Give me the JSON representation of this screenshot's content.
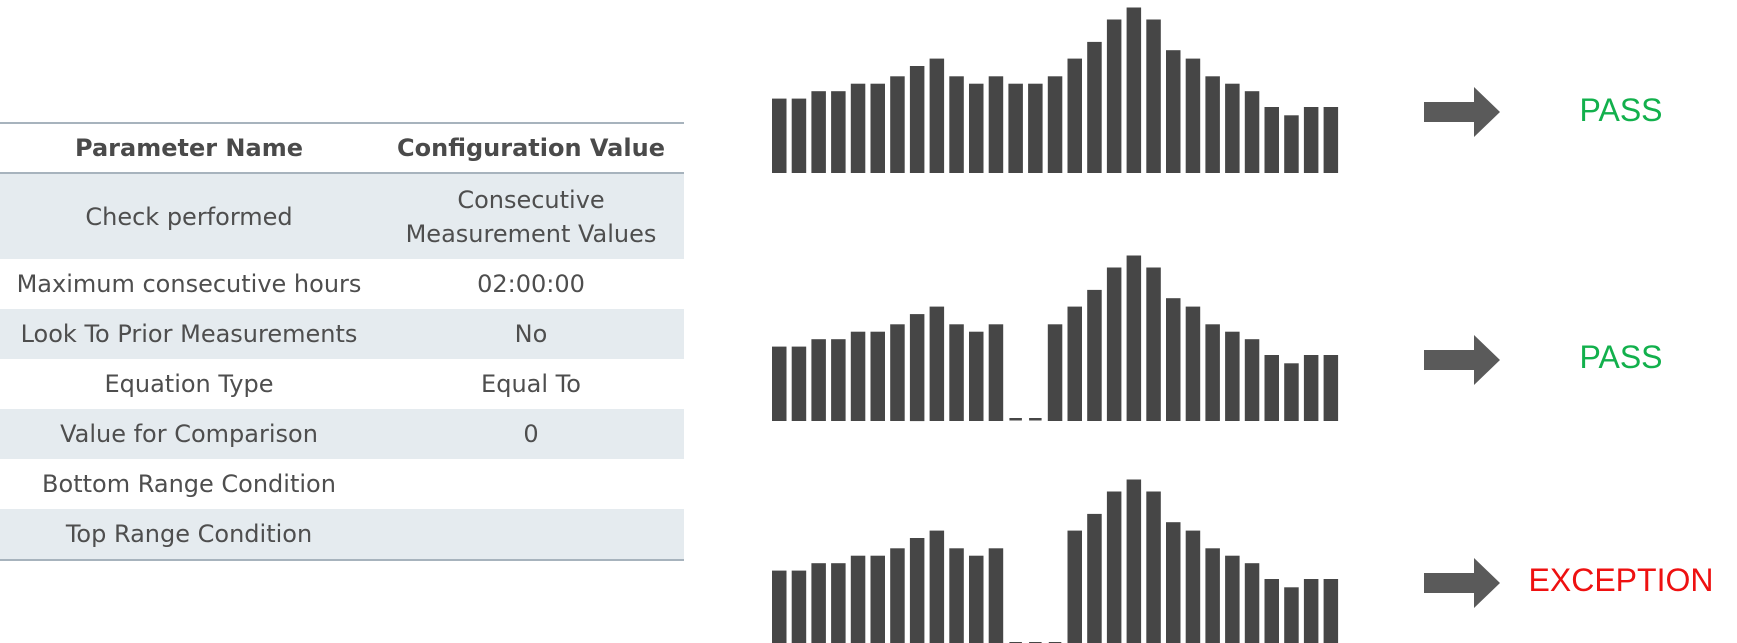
{
  "table": {
    "headers": {
      "param": "Parameter Name",
      "value": "Configuration Value"
    },
    "rows": [
      {
        "param": "Check performed",
        "value_line1": "Consecutive",
        "value_line2": "Measurement Values"
      },
      {
        "param": "Maximum consecutive hours",
        "value": "02:00:00"
      },
      {
        "param": "Look To Prior Measurements",
        "value": "No"
      },
      {
        "param": "Equation Type",
        "value": "Equal To"
      },
      {
        "param": "Value for Comparison",
        "value": "0"
      },
      {
        "param": "Bottom Range Condition",
        "value": ""
      },
      {
        "param": "Top Range Condition",
        "value": ""
      }
    ]
  },
  "colors": {
    "bar": "#464646",
    "arrow": "#5a5a5a",
    "pass": "#12b04c",
    "exception": "#ee1111",
    "table_shade": "#e5ebef",
    "table_rule": "#a7b3bd"
  },
  "series": [
    {
      "result": "PASS",
      "bars": [
        8,
        8,
        8.8,
        8.8,
        9.6,
        9.6,
        10.4,
        11.5,
        12.3,
        10.4,
        9.6,
        10.4,
        9.6,
        9.6,
        10.4,
        12.3,
        14.1,
        16.5,
        17.8,
        16.5,
        13.2,
        12.3,
        10.4,
        9.6,
        8.8,
        7.1,
        6.2,
        7.1,
        7.1
      ]
    },
    {
      "result": "PASS",
      "bars": [
        8,
        8,
        8.8,
        8.8,
        9.6,
        9.6,
        10.4,
        11.5,
        12.3,
        10.4,
        9.6,
        10.4,
        0,
        0,
        10.4,
        12.3,
        14.1,
        16.5,
        17.8,
        16.5,
        13.2,
        12.3,
        10.4,
        9.6,
        8.8,
        7.1,
        6.2,
        7.1,
        7.1
      ]
    },
    {
      "result": "EXCEPTION",
      "bars": [
        8,
        8,
        8.8,
        8.8,
        9.6,
        9.6,
        10.4,
        11.5,
        12.3,
        10.4,
        9.6,
        10.4,
        0,
        0,
        0,
        12.3,
        14.1,
        16.5,
        17.8,
        16.5,
        13.2,
        12.3,
        10.4,
        9.6,
        8.8,
        7.1,
        6.2,
        7.1,
        7.1
      ]
    }
  ]
}
